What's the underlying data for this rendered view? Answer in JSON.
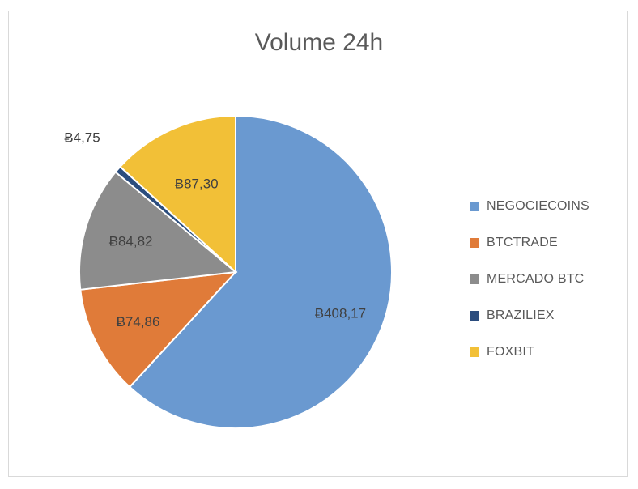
{
  "chart_data": {
    "type": "pie",
    "title": "Volume 24h",
    "currency_symbol": "Ƀ",
    "categories": [
      "NEGOCIECOINS",
      "BTCTRADE",
      "MERCADO BTC",
      "BRAZILIEX",
      "FOXBIT"
    ],
    "values": [
      408.17,
      74.86,
      84.82,
      4.75,
      87.3
    ],
    "data_labels": [
      "Ƀ408,17",
      "Ƀ74,86",
      "Ƀ84,82",
      "Ƀ4,75",
      "Ƀ87,30"
    ],
    "colors": [
      "#6a99d0",
      "#e07b39",
      "#8c8c8c",
      "#2b4d7e",
      "#f2c037"
    ],
    "legend_position": "right",
    "start_angle": "top, clockwise"
  }
}
